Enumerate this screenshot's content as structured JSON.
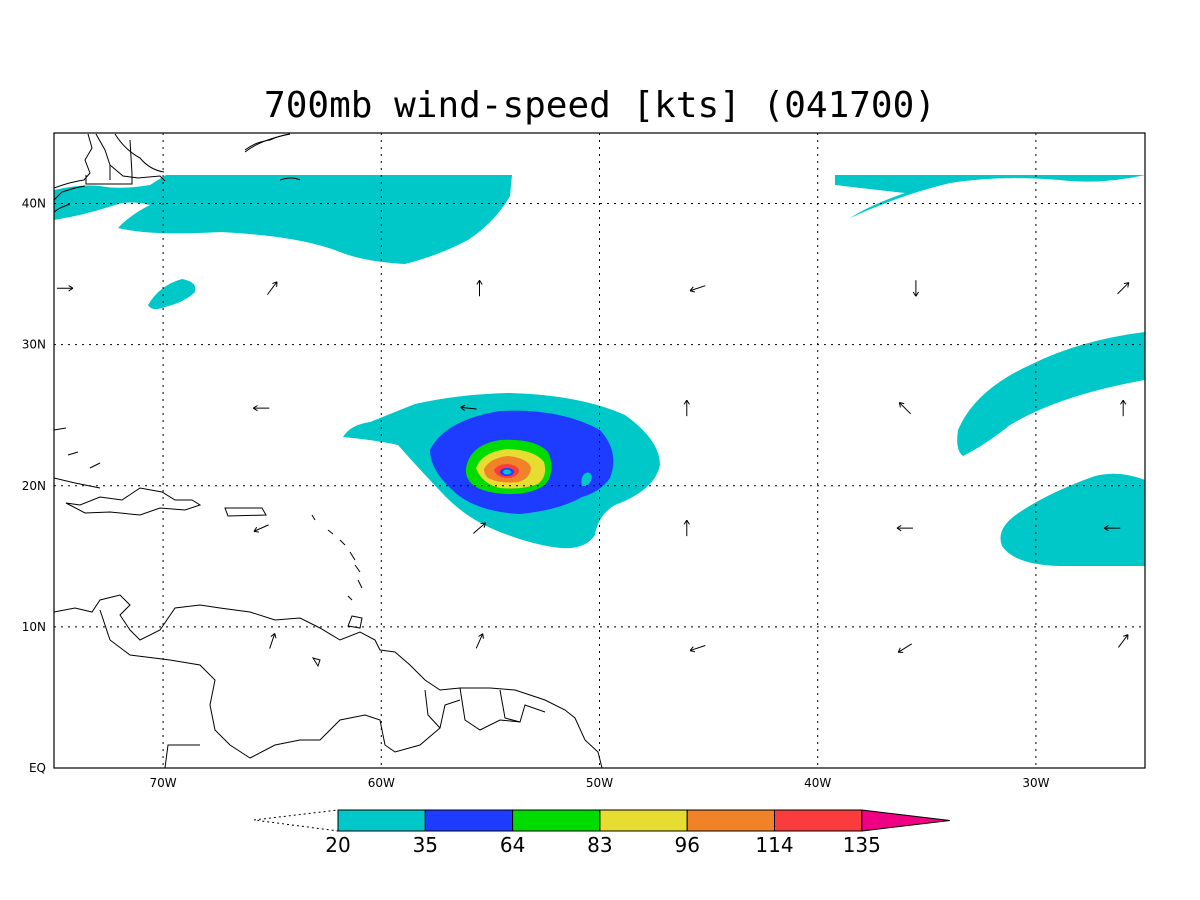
{
  "title": "700mb wind-speed [kts] (041700)",
  "map": {
    "lon_range": [
      -75,
      -25
    ],
    "lat_range": [
      0,
      45
    ],
    "lon_ticks": [
      {
        "lon": -70,
        "label": "70W"
      },
      {
        "lon": -60,
        "label": "60W"
      },
      {
        "lon": -50,
        "label": "50W"
      },
      {
        "lon": -40,
        "label": "40W"
      },
      {
        "lon": -30,
        "label": "30W"
      }
    ],
    "lat_ticks": [
      {
        "lat": 40,
        "label": "40N"
      },
      {
        "lat": 30,
        "label": "30N"
      },
      {
        "lat": 20,
        "label": "20N"
      },
      {
        "lat": 10,
        "label": "10N"
      },
      {
        "lat": 0,
        "label": "EQ"
      }
    ],
    "grid": true
  },
  "colorbar": {
    "levels": [
      "20",
      "35",
      "64",
      "83",
      "96",
      "114",
      "135"
    ],
    "colors": [
      "#00c8c8",
      "#1e3cff",
      "#00dc00",
      "#e6dc32",
      "#f08228",
      "#fa3c3c",
      "#f00082"
    ]
  },
  "storm_center": {
    "lon": -54.3,
    "lat": 20.9
  },
  "wind_vectors": [
    {
      "lon": -74.5,
      "lat": 34,
      "u": 1,
      "v": 0
    },
    {
      "lon": -65,
      "lat": 34,
      "u": 0.6,
      "v": 0.8
    },
    {
      "lon": -55.5,
      "lat": 34,
      "u": 0,
      "v": 1
    },
    {
      "lon": -45.5,
      "lat": 34,
      "u": -0.9,
      "v": -0.3
    },
    {
      "lon": -35.5,
      "lat": 34,
      "u": 0,
      "v": -1
    },
    {
      "lon": -26,
      "lat": 34,
      "u": 0.7,
      "v": 0.7
    },
    {
      "lon": -65.5,
      "lat": 25.5,
      "u": -1,
      "v": 0
    },
    {
      "lon": -56,
      "lat": 25.5,
      "u": -1,
      "v": 0.1
    },
    {
      "lon": -46,
      "lat": 25.5,
      "u": 0,
      "v": 1
    },
    {
      "lon": -36,
      "lat": 25.5,
      "u": -0.7,
      "v": 0.7
    },
    {
      "lon": -26,
      "lat": 25.5,
      "u": 0,
      "v": 1
    },
    {
      "lon": -65.5,
      "lat": 17,
      "u": -0.9,
      "v": -0.4
    },
    {
      "lon": -55.5,
      "lat": 17,
      "u": 0.7,
      "v": 0.6
    },
    {
      "lon": -46,
      "lat": 17,
      "u": 0,
      "v": 1
    },
    {
      "lon": -36,
      "lat": 17,
      "u": -1,
      "v": 0
    },
    {
      "lon": -26.5,
      "lat": 17,
      "u": -1,
      "v": 0
    },
    {
      "lon": -65,
      "lat": 9,
      "u": 0.3,
      "v": 0.9
    },
    {
      "lon": -55.5,
      "lat": 9,
      "u": 0.4,
      "v": 0.9
    },
    {
      "lon": -45.5,
      "lat": 8.5,
      "u": -0.9,
      "v": -0.3
    },
    {
      "lon": -36,
      "lat": 8.5,
      "u": -0.8,
      "v": -0.5
    },
    {
      "lon": -26,
      "lat": 9,
      "u": 0.6,
      "v": 0.8
    }
  ]
}
